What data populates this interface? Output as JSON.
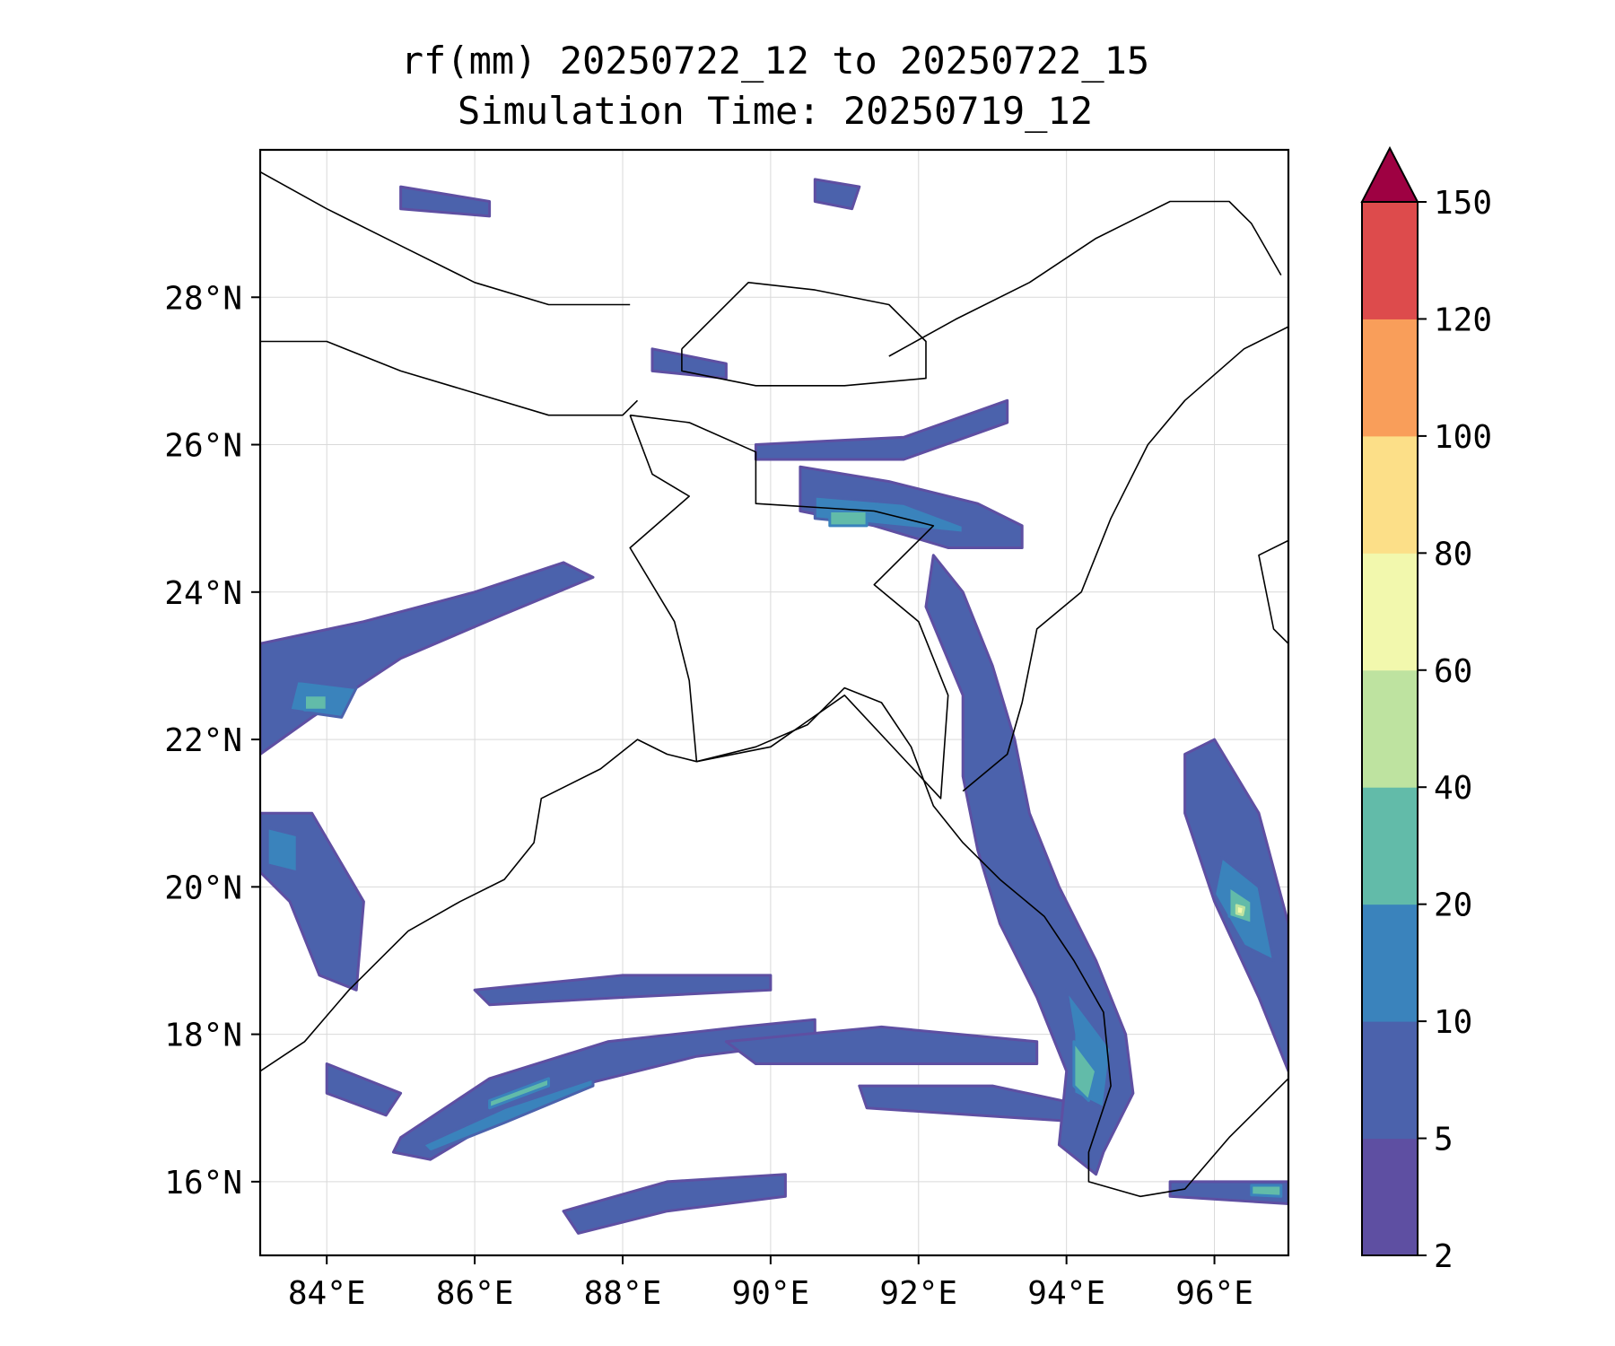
{
  "title": {
    "line1": "rf(mm) 20250722_12 to 20250722_15",
    "line2": "Simulation Time: 20250719_12"
  },
  "map": {
    "lon_range": [
      83.1,
      97.0
    ],
    "lat_range": [
      15.0,
      30.0
    ],
    "x_ticks": [
      {
        "value": 84,
        "label": "84°E"
      },
      {
        "value": 86,
        "label": "86°E"
      },
      {
        "value": 88,
        "label": "88°E"
      },
      {
        "value": 90,
        "label": "90°E"
      },
      {
        "value": 92,
        "label": "92°E"
      },
      {
        "value": 94,
        "label": "94°E"
      },
      {
        "value": 96,
        "label": "96°E"
      }
    ],
    "y_ticks": [
      {
        "value": 16,
        "label": "16°N"
      },
      {
        "value": 18,
        "label": "18°N"
      },
      {
        "value": 20,
        "label": "20°N"
      },
      {
        "value": 22,
        "label": "22°N"
      },
      {
        "value": 24,
        "label": "24°N"
      },
      {
        "value": 26,
        "label": "26°N"
      },
      {
        "value": 28,
        "label": "28°N"
      }
    ],
    "grid": true
  },
  "colorbar": {
    "levels": [
      "2",
      "5",
      "10",
      "20",
      "40",
      "60",
      "80",
      "100",
      "120",
      "150"
    ],
    "colors": [
      "#5e4fa2",
      "#4b62ac",
      "#3a83bc",
      "#62bba9",
      "#bee3a0",
      "#f2f8ad",
      "#fcdf88",
      "#f99e5a",
      "#dd4b4c",
      "#9e0142"
    ],
    "extend": "max"
  },
  "rain_regions": [
    {
      "name": "bay-band-south-1",
      "level": 1,
      "pts": [
        [
          85.0,
          16.6
        ],
        [
          86.2,
          17.4
        ],
        [
          87.8,
          17.9
        ],
        [
          89.6,
          18.1
        ],
        [
          90.6,
          18.2
        ],
        [
          90.6,
          17.9
        ],
        [
          89.0,
          17.7
        ],
        [
          87.4,
          17.3
        ],
        [
          86.4,
          16.9
        ],
        [
          85.4,
          16.3
        ],
        [
          84.9,
          16.4
        ]
      ]
    },
    {
      "name": "bay-band-south-2",
      "level": 1,
      "pts": [
        [
          86.0,
          18.6
        ],
        [
          88.0,
          18.8
        ],
        [
          90.0,
          18.8
        ],
        [
          90.0,
          18.6
        ],
        [
          88.0,
          18.5
        ],
        [
          86.2,
          18.4
        ]
      ]
    },
    {
      "name": "bay-band-south-3",
      "level": 1,
      "pts": [
        [
          89.4,
          17.9
        ],
        [
          91.5,
          18.1
        ],
        [
          93.6,
          17.9
        ],
        [
          93.6,
          17.6
        ],
        [
          91.8,
          17.6
        ],
        [
          89.8,
          17.6
        ]
      ]
    },
    {
      "name": "bay-band-south-4",
      "level": 1,
      "pts": [
        [
          87.2,
          15.6
        ],
        [
          88.6,
          16.0
        ],
        [
          90.2,
          16.1
        ],
        [
          90.2,
          15.8
        ],
        [
          88.6,
          15.6
        ],
        [
          87.4,
          15.3
        ]
      ]
    },
    {
      "name": "bay-band-south-5",
      "level": 1,
      "pts": [
        [
          91.2,
          17.3
        ],
        [
          93.0,
          17.3
        ],
        [
          94.4,
          17.0
        ],
        [
          94.4,
          16.8
        ],
        [
          92.8,
          16.9
        ],
        [
          91.3,
          17.0
        ]
      ]
    },
    {
      "name": "band-south-core",
      "level": 2,
      "pts": [
        [
          85.3,
          16.5
        ],
        [
          86.4,
          17.0
        ],
        [
          87.6,
          17.4
        ],
        [
          87.6,
          17.3
        ],
        [
          86.4,
          16.8
        ],
        [
          85.4,
          16.4
        ]
      ]
    },
    {
      "name": "band-south-core-green",
      "level": 3,
      "pts": [
        [
          86.2,
          17.1
        ],
        [
          87.0,
          17.4
        ],
        [
          87.0,
          17.3
        ],
        [
          86.2,
          17.0
        ]
      ]
    },
    {
      "name": "arakan-coast-band",
      "level": 1,
      "pts": [
        [
          92.6,
          24.0
        ],
        [
          93.0,
          23.0
        ],
        [
          93.3,
          22.0
        ],
        [
          93.5,
          21.0
        ],
        [
          93.9,
          20.0
        ],
        [
          94.4,
          19.0
        ],
        [
          94.8,
          18.0
        ],
        [
          94.9,
          17.2
        ],
        [
          94.5,
          16.4
        ],
        [
          94.4,
          16.1
        ],
        [
          93.9,
          16.5
        ],
        [
          94.0,
          17.5
        ],
        [
          93.6,
          18.5
        ],
        [
          93.1,
          19.5
        ],
        [
          92.8,
          20.5
        ],
        [
          92.6,
          21.5
        ],
        [
          92.6,
          22.6
        ],
        [
          92.1,
          23.8
        ],
        [
          92.2,
          24.5
        ]
      ]
    },
    {
      "name": "arakan-coast-core",
      "level": 2,
      "pts": [
        [
          94.0,
          18.6
        ],
        [
          94.6,
          17.8
        ],
        [
          94.5,
          17.0
        ],
        [
          94.1,
          17.2
        ],
        [
          94.1,
          18.0
        ]
      ]
    },
    {
      "name": "arakan-coast-green",
      "level": 3,
      "pts": [
        [
          94.1,
          17.9
        ],
        [
          94.4,
          17.5
        ],
        [
          94.3,
          17.1
        ],
        [
          94.1,
          17.3
        ]
      ]
    },
    {
      "name": "myanmar-east-band",
      "level": 1,
      "pts": [
        [
          96.0,
          22.0
        ],
        [
          96.6,
          21.0
        ],
        [
          97.0,
          19.5
        ],
        [
          97.0,
          17.5
        ],
        [
          96.6,
          18.5
        ],
        [
          96.0,
          19.8
        ],
        [
          95.6,
          21.0
        ],
        [
          95.6,
          21.8
        ]
      ]
    },
    {
      "name": "myanmar-east-core",
      "level": 2,
      "pts": [
        [
          96.1,
          20.4
        ],
        [
          96.6,
          20.0
        ],
        [
          96.8,
          19.0
        ],
        [
          96.4,
          19.2
        ],
        [
          96.0,
          19.9
        ]
      ]
    },
    {
      "name": "myanmar-east-green",
      "level": 3,
      "pts": [
        [
          96.2,
          20.0
        ],
        [
          96.5,
          19.8
        ],
        [
          96.5,
          19.5
        ],
        [
          96.2,
          19.6
        ]
      ]
    },
    {
      "name": "myanmar-east-peak",
      "level": 5,
      "pts": [
        [
          96.3,
          19.75
        ],
        [
          96.4,
          19.72
        ],
        [
          96.38,
          19.62
        ],
        [
          96.3,
          19.64
        ]
      ]
    },
    {
      "name": "meghalaya-band",
      "level": 1,
      "pts": [
        [
          90.4,
          25.7
        ],
        [
          91.6,
          25.5
        ],
        [
          92.8,
          25.2
        ],
        [
          93.4,
          24.9
        ],
        [
          93.4,
          24.6
        ],
        [
          92.4,
          24.6
        ],
        [
          91.4,
          24.9
        ],
        [
          90.4,
          25.1
        ]
      ]
    },
    {
      "name": "meghalaya-core",
      "level": 2,
      "pts": [
        [
          90.6,
          25.3
        ],
        [
          91.8,
          25.2
        ],
        [
          92.6,
          24.9
        ],
        [
          92.6,
          24.8
        ],
        [
          91.6,
          24.9
        ],
        [
          90.6,
          25.0
        ]
      ]
    },
    {
      "name": "meghalaya-green",
      "level": 3,
      "pts": [
        [
          90.8,
          25.1
        ],
        [
          91.3,
          25.1
        ],
        [
          91.3,
          24.9
        ],
        [
          90.8,
          24.9
        ]
      ]
    },
    {
      "name": "odisha-west-band",
      "level": 1,
      "pts": [
        [
          83.1,
          23.3
        ],
        [
          84.5,
          23.6
        ],
        [
          86.0,
          24.0
        ],
        [
          87.2,
          24.4
        ],
        [
          87.6,
          24.2
        ],
        [
          86.4,
          23.7
        ],
        [
          85.0,
          23.1
        ],
        [
          83.8,
          22.3
        ],
        [
          83.1,
          21.8
        ]
      ]
    },
    {
      "name": "odisha-west-core",
      "level": 2,
      "pts": [
        [
          83.6,
          22.8
        ],
        [
          84.4,
          22.7
        ],
        [
          84.2,
          22.3
        ],
        [
          83.5,
          22.4
        ]
      ]
    },
    {
      "name": "odisha-west-green",
      "level": 3,
      "pts": [
        [
          83.7,
          22.6
        ],
        [
          84.0,
          22.6
        ],
        [
          84.0,
          22.4
        ],
        [
          83.7,
          22.4
        ]
      ]
    },
    {
      "name": "odisha-coast-band",
      "level": 1,
      "pts": [
        [
          83.1,
          21.0
        ],
        [
          83.8,
          21.0
        ],
        [
          84.5,
          19.8
        ],
        [
          84.4,
          18.6
        ],
        [
          83.9,
          18.8
        ],
        [
          83.5,
          19.8
        ],
        [
          83.1,
          20.2
        ]
      ]
    },
    {
      "name": "odisha-coast-core",
      "level": 2,
      "pts": [
        [
          83.2,
          20.8
        ],
        [
          83.6,
          20.7
        ],
        [
          83.6,
          20.2
        ],
        [
          83.2,
          20.3
        ]
      ]
    },
    {
      "name": "nepal-patch",
      "level": 1,
      "pts": [
        [
          88.4,
          27.3
        ],
        [
          89.4,
          27.1
        ],
        [
          89.4,
          26.9
        ],
        [
          88.4,
          27.0
        ]
      ]
    },
    {
      "name": "assam-patch",
      "level": 1,
      "pts": [
        [
          89.8,
          26.0
        ],
        [
          91.8,
          26.1
        ],
        [
          93.2,
          26.6
        ],
        [
          93.2,
          26.3
        ],
        [
          91.8,
          25.8
        ],
        [
          89.8,
          25.8
        ]
      ]
    },
    {
      "name": "west-blob-1",
      "level": 1,
      "pts": [
        [
          84.0,
          17.6
        ],
        [
          85.0,
          17.2
        ],
        [
          84.8,
          16.9
        ],
        [
          84.0,
          17.2
        ]
      ]
    },
    {
      "name": "north-blob-1",
      "level": 1,
      "pts": [
        [
          85.0,
          29.5
        ],
        [
          86.2,
          29.3
        ],
        [
          86.2,
          29.1
        ],
        [
          85.0,
          29.2
        ]
      ]
    },
    {
      "name": "north-blob-2",
      "level": 1,
      "pts": [
        [
          90.6,
          29.6
        ],
        [
          91.2,
          29.5
        ],
        [
          91.1,
          29.2
        ],
        [
          90.6,
          29.3
        ]
      ]
    },
    {
      "name": "east-tail",
      "level": 1,
      "pts": [
        [
          95.4,
          16.0
        ],
        [
          97.0,
          16.0
        ],
        [
          97.0,
          15.7
        ],
        [
          95.4,
          15.8
        ]
      ]
    },
    {
      "name": "east-tail-core",
      "level": 3,
      "pts": [
        [
          96.5,
          15.95
        ],
        [
          96.9,
          15.95
        ],
        [
          96.9,
          15.8
        ],
        [
          96.5,
          15.82
        ]
      ]
    }
  ],
  "boundaries": [
    {
      "name": "east-india-coastline",
      "pts": [
        [
          83.1,
          17.5
        ],
        [
          83.7,
          17.9
        ],
        [
          84.3,
          18.6
        ],
        [
          85.1,
          19.4
        ],
        [
          85.8,
          19.8
        ],
        [
          86.4,
          20.1
        ],
        [
          86.8,
          20.6
        ],
        [
          86.9,
          21.2
        ],
        [
          87.7,
          21.6
        ],
        [
          88.2,
          22.0
        ],
        [
          88.6,
          21.8
        ],
        [
          89.0,
          21.7
        ],
        [
          89.8,
          21.9
        ],
        [
          90.5,
          22.2
        ],
        [
          91.0,
          22.7
        ],
        [
          91.5,
          22.5
        ],
        [
          91.9,
          21.9
        ],
        [
          92.2,
          21.1
        ],
        [
          92.6,
          20.6
        ],
        [
          93.1,
          20.1
        ],
        [
          93.7,
          19.6
        ],
        [
          94.1,
          19.0
        ],
        [
          94.5,
          18.3
        ],
        [
          94.6,
          17.3
        ],
        [
          94.3,
          16.4
        ],
        [
          94.3,
          16.0
        ],
        [
          95.0,
          15.8
        ],
        [
          95.6,
          15.9
        ],
        [
          96.2,
          16.6
        ],
        [
          96.8,
          17.2
        ],
        [
          97.0,
          17.4
        ]
      ]
    },
    {
      "name": "nepal-india-border",
      "pts": [
        [
          83.1,
          27.4
        ],
        [
          84.0,
          27.4
        ],
        [
          85.0,
          27.0
        ],
        [
          86.0,
          26.7
        ],
        [
          87.0,
          26.4
        ],
        [
          88.0,
          26.4
        ],
        [
          88.2,
          26.6
        ]
      ]
    },
    {
      "name": "nepal-china-border",
      "pts": [
        [
          83.1,
          29.7
        ],
        [
          84.0,
          29.2
        ],
        [
          85.0,
          28.7
        ],
        [
          86.0,
          28.2
        ],
        [
          87.0,
          27.9
        ],
        [
          88.1,
          27.9
        ]
      ]
    },
    {
      "name": "bhutan-outline",
      "pts": [
        [
          88.8,
          27.3
        ],
        [
          89.7,
          28.2
        ],
        [
          90.6,
          28.1
        ],
        [
          91.6,
          27.9
        ],
        [
          92.1,
          27.4
        ],
        [
          92.1,
          26.9
        ],
        [
          91.0,
          26.8
        ],
        [
          89.8,
          26.8
        ],
        [
          88.8,
          27.0
        ],
        [
          88.8,
          27.3
        ]
      ]
    },
    {
      "name": "bangladesh-outline",
      "pts": [
        [
          88.1,
          26.4
        ],
        [
          88.4,
          25.6
        ],
        [
          88.9,
          25.3
        ],
        [
          88.1,
          24.6
        ],
        [
          88.7,
          23.6
        ],
        [
          88.9,
          22.8
        ],
        [
          89.0,
          21.7
        ],
        [
          90.0,
          21.9
        ],
        [
          91.0,
          22.6
        ],
        [
          92.3,
          21.2
        ],
        [
          92.4,
          22.6
        ],
        [
          92.0,
          23.6
        ],
        [
          91.4,
          24.1
        ],
        [
          92.2,
          24.9
        ],
        [
          91.4,
          25.1
        ],
        [
          89.8,
          25.2
        ],
        [
          89.8,
          25.9
        ],
        [
          88.9,
          26.3
        ],
        [
          88.1,
          26.4
        ]
      ]
    },
    {
      "name": "arunachal-border",
      "pts": [
        [
          91.6,
          27.2
        ],
        [
          92.5,
          27.7
        ],
        [
          93.5,
          28.2
        ],
        [
          94.4,
          28.8
        ],
        [
          95.4,
          29.3
        ],
        [
          96.2,
          29.3
        ],
        [
          96.5,
          29.0
        ],
        [
          96.9,
          28.3
        ]
      ]
    },
    {
      "name": "myanmar-india-border",
      "pts": [
        [
          97.0,
          27.6
        ],
        [
          96.4,
          27.3
        ],
        [
          95.6,
          26.6
        ],
        [
          95.1,
          26.0
        ],
        [
          94.6,
          25.0
        ],
        [
          94.2,
          24.0
        ],
        [
          93.6,
          23.5
        ],
        [
          93.4,
          22.5
        ],
        [
          93.2,
          21.8
        ],
        [
          92.6,
          21.3
        ]
      ]
    },
    {
      "name": "myanmar-china-border",
      "pts": [
        [
          97.0,
          24.7
        ],
        [
          96.6,
          24.5
        ],
        [
          96.8,
          23.5
        ],
        [
          97.0,
          23.3
        ]
      ]
    }
  ]
}
